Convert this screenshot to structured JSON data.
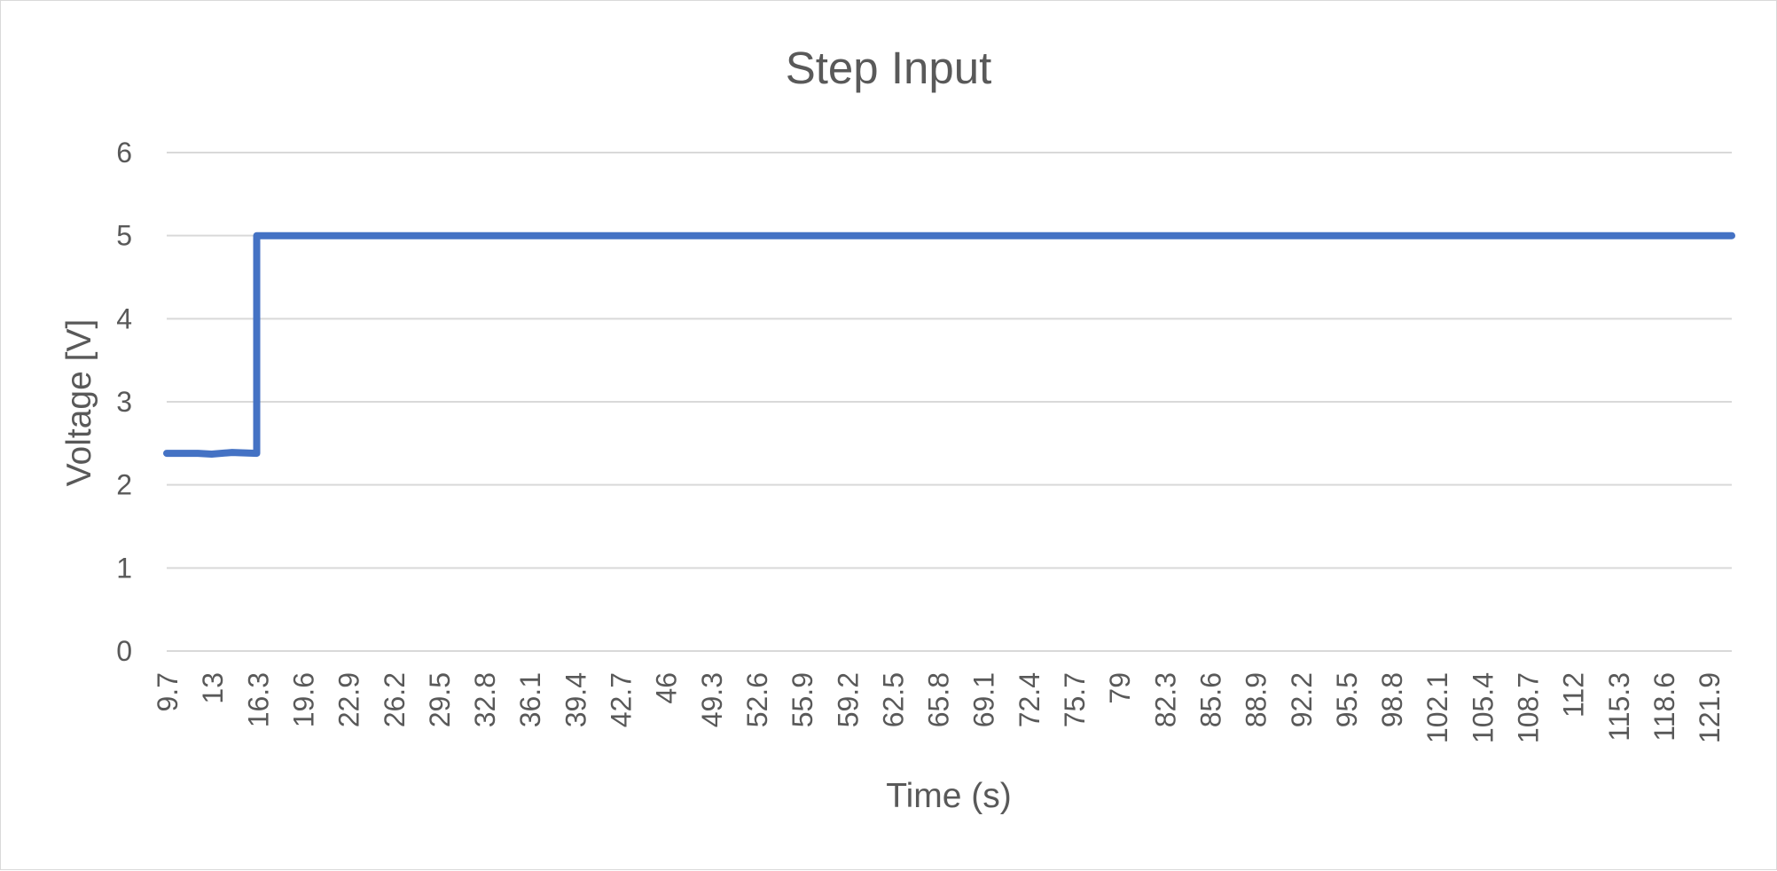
{
  "chart_data": {
    "type": "line",
    "title": "Step Input",
    "xlabel": "Time (s)",
    "ylabel": "Voltage [V]",
    "ylim": [
      0,
      6
    ],
    "y_ticks": [
      0,
      1,
      2,
      3,
      4,
      5,
      6
    ],
    "x_tick_labels": [
      "9.7",
      "13",
      "16.3",
      "19.6",
      "22.9",
      "26.2",
      "29.5",
      "32.8",
      "36.1",
      "39.4",
      "42.7",
      "46",
      "49.3",
      "52.6",
      "55.9",
      "59.2",
      "62.5",
      "65.8",
      "69.1",
      "72.4",
      "75.7",
      "79",
      "82.3",
      "85.6",
      "88.9",
      "92.2",
      "95.5",
      "98.8",
      "102.1",
      "105.4",
      "108.7",
      "112",
      "115.3",
      "118.6",
      "121.9"
    ],
    "x_range": [
      9.7,
      124.5
    ],
    "grid": true,
    "legend": "none",
    "series": [
      {
        "color": "#4472c4",
        "x": [
          9.7,
          12.0,
          13.0,
          14.5,
          16.3,
          16.3,
          124.5
        ],
        "y": [
          2.38,
          2.38,
          2.37,
          2.39,
          2.38,
          5.0,
          5.0
        ]
      }
    ]
  }
}
